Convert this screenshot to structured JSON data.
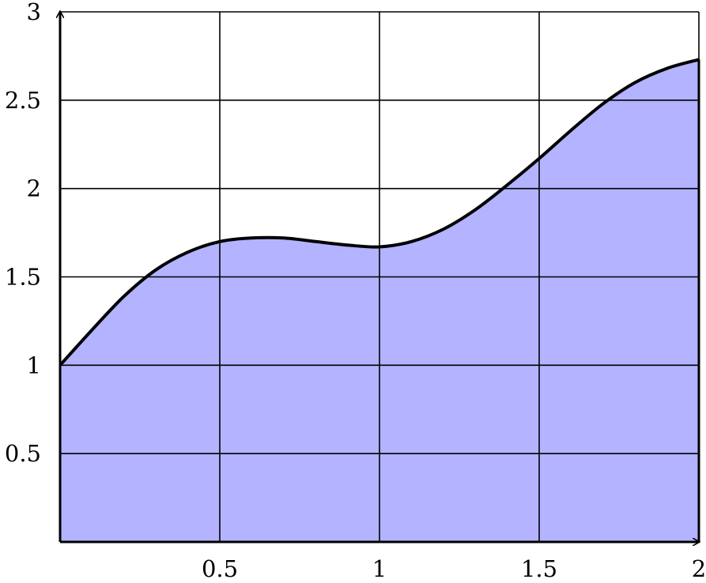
{
  "chart_data": {
    "type": "area",
    "title": "",
    "xlabel": "",
    "ylabel": "",
    "xlim": [
      0,
      2
    ],
    "ylim": [
      0,
      3
    ],
    "grid": true,
    "x_ticks": [
      0.5,
      1,
      1.5,
      2
    ],
    "x_tick_labels": [
      "0.5",
      "1",
      "1.5",
      "2"
    ],
    "y_ticks": [
      0.5,
      1,
      1.5,
      2,
      2.5,
      3
    ],
    "y_tick_labels": [
      "0.5",
      "1",
      "1.5",
      "2",
      "2.5",
      "3"
    ],
    "series": [
      {
        "x": [
          0,
          0.1,
          0.2,
          0.3,
          0.4,
          0.5,
          0.6,
          0.7,
          0.8,
          0.9,
          1.0,
          1.1,
          1.2,
          1.3,
          1.4,
          1.5,
          1.6,
          1.7,
          1.8,
          1.9,
          2.0
        ],
        "y": [
          1.0,
          1.2,
          1.39,
          1.54,
          1.64,
          1.7,
          1.72,
          1.72,
          1.7,
          1.68,
          1.67,
          1.7,
          1.77,
          1.88,
          2.02,
          2.17,
          2.33,
          2.48,
          2.6,
          2.68,
          2.73
        ],
        "fill_color": "#b3b3ff",
        "line_color": "#000000"
      }
    ]
  }
}
